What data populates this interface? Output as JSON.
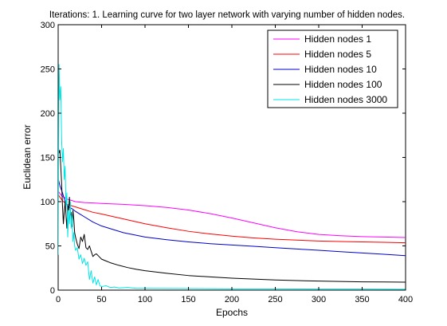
{
  "chart_data": {
    "type": "line",
    "title": "Iterations: 1. Learning curve for two layer network with varying number of hidden nodes.",
    "xlabel": "Epochs",
    "ylabel": "Euclidean error",
    "xlim": [
      0,
      400
    ],
    "ylim": [
      0,
      300
    ],
    "xticks": [
      0,
      50,
      100,
      150,
      200,
      250,
      300,
      350,
      400
    ],
    "yticks": [
      0,
      50,
      100,
      150,
      200,
      250,
      300
    ],
    "grid": false,
    "legend_position": "top-right",
    "series": [
      {
        "name": "Hidden nodes 1",
        "color": "#ff00ff",
        "x": [
          0,
          2,
          5,
          10,
          20,
          30,
          40,
          50,
          75,
          100,
          125,
          150,
          175,
          200,
          225,
          250,
          275,
          300,
          325,
          350,
          375,
          400
        ],
        "y": [
          112,
          109,
          106,
          103,
          100,
          99,
          98.5,
          98,
          97,
          95.5,
          93.5,
          90.5,
          86.5,
          81.5,
          76,
          70.5,
          66,
          63,
          61.5,
          60.5,
          60,
          59.5
        ]
      },
      {
        "name": "Hidden nodes 5",
        "color": "#ff0000",
        "x": [
          0,
          2,
          5,
          10,
          20,
          30,
          40,
          50,
          75,
          100,
          125,
          150,
          175,
          200,
          225,
          250,
          275,
          300,
          325,
          350,
          375,
          400
        ],
        "y": [
          108,
          105,
          101,
          97,
          94,
          91,
          88,
          86,
          80.5,
          75,
          70.5,
          66.5,
          63.5,
          61,
          59,
          57.5,
          56.5,
          55.5,
          55,
          54.5,
          54,
          53.5
        ]
      },
      {
        "name": "Hidden nodes 10",
        "color": "#0000cc",
        "x": [
          0,
          2,
          5,
          8,
          12,
          16,
          20,
          25,
          30,
          40,
          50,
          75,
          100,
          125,
          150,
          175,
          200,
          225,
          250,
          275,
          300,
          325,
          350,
          375,
          400
        ],
        "y": [
          126,
          118,
          110,
          100,
          94,
          92,
          89,
          86,
          83,
          77,
          72.5,
          65,
          60,
          57,
          54.5,
          52.5,
          51,
          49.5,
          48,
          46.5,
          45,
          43.5,
          42,
          40.5,
          39
        ]
      },
      {
        "name": "Hidden nodes 100",
        "color": "#000000",
        "x": [
          0,
          1,
          2,
          3,
          4,
          5,
          6,
          7,
          8,
          9,
          10,
          11,
          12,
          13,
          14,
          15,
          16,
          17,
          18,
          19,
          20,
          22,
          24,
          26,
          28,
          30,
          32,
          34,
          36,
          38,
          40,
          42,
          44,
          46,
          48,
          50,
          55,
          60,
          70,
          80,
          90,
          100,
          125,
          150,
          175,
          200,
          225,
          250,
          275,
          300,
          325,
          350,
          375,
          400
        ],
        "y": [
          165,
          155,
          158,
          140,
          120,
          95,
          75,
          88,
          100,
          85,
          70,
          95,
          90,
          105,
          85,
          88,
          72,
          90,
          80,
          65,
          60,
          52,
          47,
          60,
          55,
          63,
          48,
          46,
          50,
          44,
          38,
          40,
          41,
          39,
          37,
          35,
          33,
          31,
          28,
          25.5,
          23.5,
          22,
          19,
          16.5,
          15,
          13.5,
          12.5,
          11.5,
          10.8,
          10.2,
          9.8,
          9.4,
          9.2,
          9
        ]
      },
      {
        "name": "Hidden nodes 3000",
        "color": "#00e5e5",
        "x": [
          0,
          1,
          2,
          3,
          4,
          5,
          6,
          7,
          8,
          9,
          10,
          11,
          12,
          13,
          14,
          15,
          16,
          17,
          18,
          19,
          20,
          22,
          24,
          26,
          28,
          30,
          32,
          34,
          36,
          38,
          40,
          42,
          44,
          46,
          48,
          50,
          55,
          60,
          65,
          70,
          80,
          90,
          100,
          150,
          200,
          250,
          300,
          350,
          400
        ],
        "y": [
          40,
          255,
          215,
          230,
          170,
          145,
          160,
          125,
          140,
          95,
          110,
          60,
          90,
          75,
          100,
          70,
          85,
          55,
          65,
          50,
          45,
          48,
          35,
          40,
          30,
          36,
          28,
          32,
          12,
          22,
          8,
          15,
          6,
          12,
          5,
          4,
          5,
          3,
          3.5,
          2.5,
          3,
          2,
          2,
          1.8,
          1.5,
          1.5,
          1.2,
          1.2,
          1
        ]
      }
    ]
  }
}
